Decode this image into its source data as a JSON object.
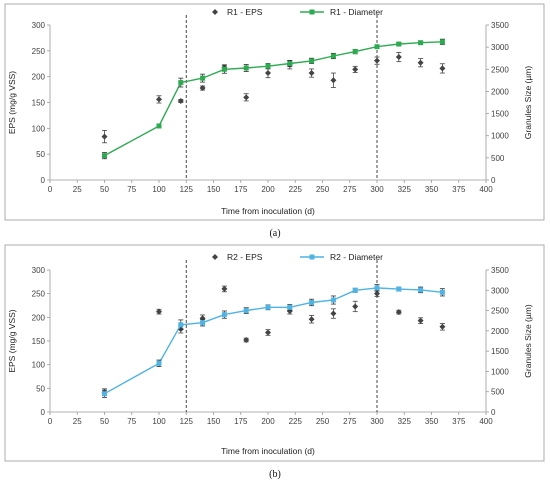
{
  "chart_data": [
    {
      "type": "line",
      "caption": "(a)",
      "xlabel": "Time from inoculation (d)",
      "ylabel": "EPS (mg/g VSS)",
      "y2label": "Granules Size (µm)",
      "xlim": [
        0,
        400
      ],
      "ylim": [
        0,
        300
      ],
      "y2lim": [
        0,
        3500
      ],
      "x_ticks": [
        0,
        25,
        50,
        75,
        100,
        125,
        150,
        175,
        200,
        225,
        250,
        275,
        300,
        325,
        350,
        375,
        400
      ],
      "y_ticks": [
        0,
        50,
        100,
        150,
        200,
        250,
        300
      ],
      "y2_ticks": [
        0,
        500,
        1000,
        1500,
        2000,
        2500,
        3000,
        3500
      ],
      "vlines": [
        125,
        300
      ],
      "legend_position": "top-center",
      "grid": false,
      "series": [
        {
          "name": "R1 - EPS",
          "axis": "left",
          "style": "markers",
          "color": "#444444",
          "x": [
            50,
            100,
            120,
            140,
            160,
            180,
            200,
            220,
            240,
            260,
            280,
            300,
            320,
            340,
            360
          ],
          "y": [
            84,
            156,
            153,
            178,
            218,
            160,
            207,
            223,
            207,
            193,
            214,
            231,
            238,
            227,
            216
          ],
          "err": [
            12,
            7,
            3,
            4,
            5,
            7,
            9,
            8,
            8,
            14,
            6,
            7,
            9,
            8,
            9
          ]
        },
        {
          "name": "R1 - Diameter",
          "axis": "right",
          "style": "line-markers",
          "color": "#2eaa52",
          "x": [
            50,
            100,
            120,
            140,
            160,
            180,
            200,
            220,
            240,
            260,
            280,
            300,
            320,
            340,
            360
          ],
          "y": [
            550,
            1220,
            2200,
            2300,
            2500,
            2530,
            2570,
            2630,
            2690,
            2800,
            2900,
            3010,
            3070,
            3100,
            3120
          ],
          "err": [
            70,
            40,
            100,
            90,
            90,
            80,
            60,
            70,
            60,
            60,
            50,
            40,
            30,
            40,
            60
          ]
        }
      ]
    },
    {
      "type": "line",
      "caption": "(b)",
      "xlabel": "Time from inoculation (d)",
      "ylabel": "EPS (mg/g VSS)",
      "y2label": "Granules  Size (µm)",
      "xlim": [
        0,
        400
      ],
      "ylim": [
        0,
        300
      ],
      "y2lim": [
        0,
        3500
      ],
      "x_ticks": [
        0,
        25,
        50,
        75,
        100,
        125,
        150,
        175,
        200,
        225,
        250,
        275,
        300,
        325,
        350,
        375,
        400
      ],
      "y_ticks": [
        0,
        50,
        100,
        150,
        200,
        250,
        300
      ],
      "y2_ticks": [
        0,
        500,
        1000,
        1500,
        2000,
        2500,
        3000,
        3500
      ],
      "vlines": [
        125,
        300
      ],
      "legend_position": "top-center",
      "grid": false,
      "series": [
        {
          "name": "R2 - EPS",
          "axis": "left",
          "style": "markers",
          "color": "#444444",
          "x": [
            50,
            100,
            120,
            140,
            160,
            180,
            200,
            220,
            240,
            260,
            280,
            300,
            320,
            340,
            360
          ],
          "y": [
            42,
            212,
            175,
            198,
            260,
            152,
            168,
            213,
            196,
            208,
            223,
            250,
            211,
            193,
            180
          ],
          "err": [
            7,
            5,
            8,
            7,
            6,
            4,
            6,
            6,
            8,
            10,
            11,
            6,
            4,
            6,
            7
          ]
        },
        {
          "name": "R2 - Diameter",
          "axis": "right",
          "style": "line-markers",
          "color": "#4fb3e3",
          "x": [
            50,
            100,
            120,
            140,
            160,
            180,
            200,
            220,
            240,
            260,
            280,
            300,
            320,
            340,
            360
          ],
          "y": [
            450,
            1200,
            2150,
            2200,
            2400,
            2500,
            2580,
            2580,
            2700,
            2760,
            3000,
            3060,
            3030,
            3010,
            2950
          ],
          "err": [
            90,
            80,
            120,
            80,
            90,
            70,
            60,
            70,
            80,
            100,
            50,
            80,
            50,
            70,
            90
          ]
        }
      ]
    }
  ]
}
